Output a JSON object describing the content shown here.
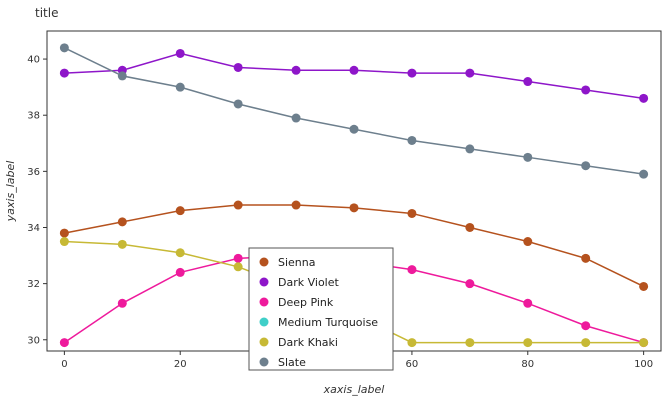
{
  "chart_data": {
    "type": "line",
    "title": "title",
    "xlabel": "xaxis_label",
    "ylabel": "yaxis_label",
    "xlim": [
      -3,
      103
    ],
    "ylim": [
      29.6,
      41.0
    ],
    "x_ticks": [
      0,
      20,
      40,
      60,
      80,
      100
    ],
    "y_ticks": [
      30,
      32,
      34,
      36,
      38,
      40
    ],
    "grid": false,
    "legend_position": "inside-bottom-center",
    "series": [
      {
        "name": "Sienna",
        "color": "#b5521e",
        "x": [
          0,
          10,
          20,
          30,
          40,
          50,
          60,
          70,
          80,
          90,
          100
        ],
        "y": [
          33.8,
          34.2,
          34.6,
          34.8,
          34.8,
          34.7,
          34.5,
          34.0,
          33.5,
          32.9,
          31.9
        ]
      },
      {
        "name": "Dark Violet",
        "color": "#8e16c9",
        "x": [
          0,
          10,
          20,
          30,
          40,
          50,
          60,
          70,
          80,
          90,
          100
        ],
        "y": [
          39.5,
          39.6,
          40.2,
          39.7,
          39.6,
          39.6,
          39.5,
          39.5,
          39.2,
          38.9,
          38.6
        ]
      },
      {
        "name": "Deep Pink",
        "color": "#ee1a9c",
        "x": [
          0,
          10,
          20,
          30,
          40,
          50,
          60,
          70,
          80,
          90,
          100
        ],
        "y": [
          29.9,
          31.3,
          32.4,
          32.9,
          33.0,
          32.8,
          32.5,
          32.0,
          31.3,
          30.5,
          29.9
        ]
      },
      {
        "name": "Medium Turquoise",
        "color": "#3fcfc8",
        "x": [],
        "y": []
      },
      {
        "name": "Dark Khaki",
        "color": "#c7b935",
        "x": [
          0,
          10,
          20,
          30,
          40,
          50,
          60,
          70,
          80,
          90,
          100
        ],
        "y": [
          33.5,
          33.4,
          33.1,
          32.6,
          31.8,
          30.9,
          29.9,
          29.9,
          29.9,
          29.9,
          29.9
        ]
      },
      {
        "name": "Slate",
        "color": "#6d7f8d",
        "x": [
          0,
          10,
          20,
          30,
          40,
          50,
          60,
          70,
          80,
          90,
          100
        ],
        "y": [
          40.4,
          39.4,
          39.0,
          38.4,
          37.9,
          37.5,
          37.1,
          36.8,
          36.5,
          36.2,
          35.9
        ]
      }
    ]
  }
}
